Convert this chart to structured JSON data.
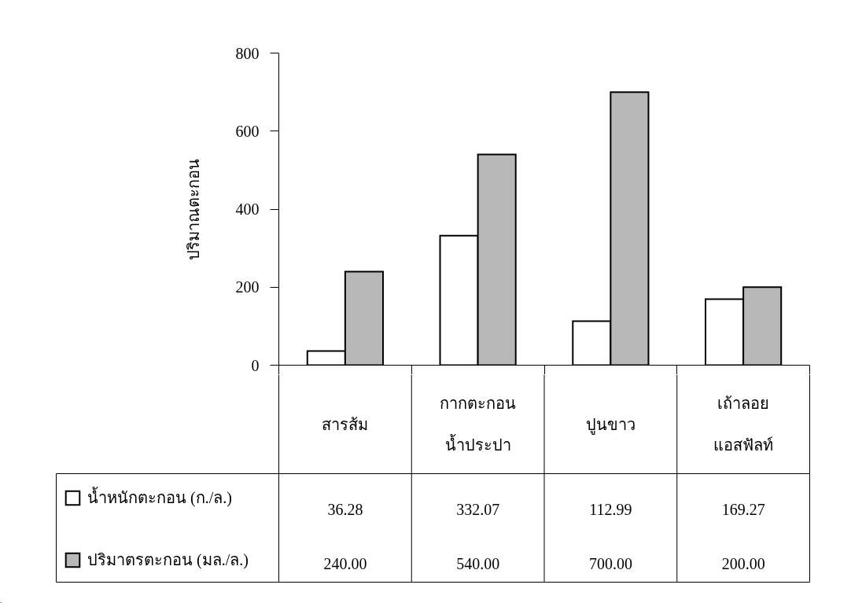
{
  "chart_data": {
    "type": "bar",
    "ylabel": "ปริมาณตะกอน",
    "categories": [
      "สารส้ม",
      "กากตะกอน\nน้ำประปา",
      "ปูนขาว",
      "เถ้าลอย\nแอสฟัลท์"
    ],
    "series": [
      {
        "name": "น้ำหนักตะกอน (ก./ล.)",
        "color": "#ffffff",
        "values": [
          36.28,
          332.07,
          112.99,
          169.27
        ],
        "value_labels": [
          "36.28",
          "332.07",
          "112.99",
          "169.27"
        ]
      },
      {
        "name": "ปริมาตรตะกอน (มล./ล.)",
        "color": "#b8b8b8",
        "values": [
          240,
          540,
          700,
          200
        ],
        "value_labels": [
          "240.00",
          "540.00",
          "700.00",
          "200.00"
        ]
      }
    ],
    "ylim": [
      0,
      800
    ],
    "yticks": [
      0,
      200,
      400,
      600,
      800
    ],
    "legend": "bottom left"
  }
}
